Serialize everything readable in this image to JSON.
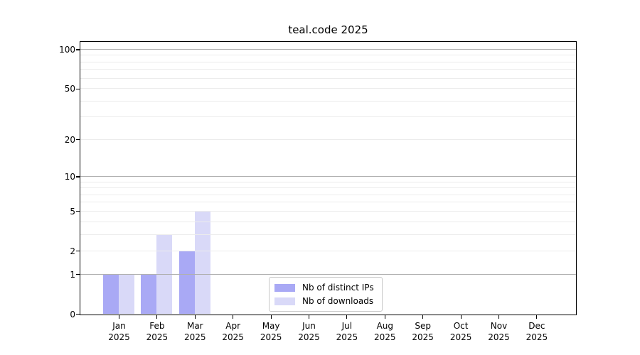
{
  "chart_data": {
    "type": "bar",
    "title": "teal.code 2025",
    "categories": [
      "Jan 2025",
      "Feb 2025",
      "Mar 2025",
      "Apr 2025",
      "May 2025",
      "Jun 2025",
      "Jul 2025",
      "Aug 2025",
      "Sep 2025",
      "Oct 2025",
      "Nov 2025",
      "Dec 2025"
    ],
    "series": [
      {
        "name": "Nb of distinct IPs",
        "color": "#a9a9f5",
        "values": [
          1,
          1,
          2,
          0,
          0,
          0,
          0,
          0,
          0,
          0,
          0,
          0
        ]
      },
      {
        "name": "Nb of downloads",
        "color": "#d9d9f8",
        "values": [
          1,
          3,
          5,
          0,
          0,
          0,
          0,
          0,
          0,
          0,
          0,
          0
        ]
      }
    ],
    "xlabel": "",
    "ylabel": "",
    "yscale": "log1p",
    "ylim": [
      0,
      114
    ],
    "yticks": [
      0,
      1,
      2,
      5,
      10,
      20,
      50,
      100
    ],
    "gridlines": {
      "major": [
        1,
        10,
        100
      ],
      "minor": [
        2,
        3,
        4,
        5,
        6,
        7,
        8,
        9,
        20,
        30,
        40,
        50,
        60,
        70,
        80,
        90
      ]
    },
    "grid": true,
    "legend_position": "lower center",
    "colors": {
      "major_grid": "#b0b0b0",
      "minor_grid": "#ececec",
      "axis": "#000000",
      "background": "#ffffff"
    }
  }
}
